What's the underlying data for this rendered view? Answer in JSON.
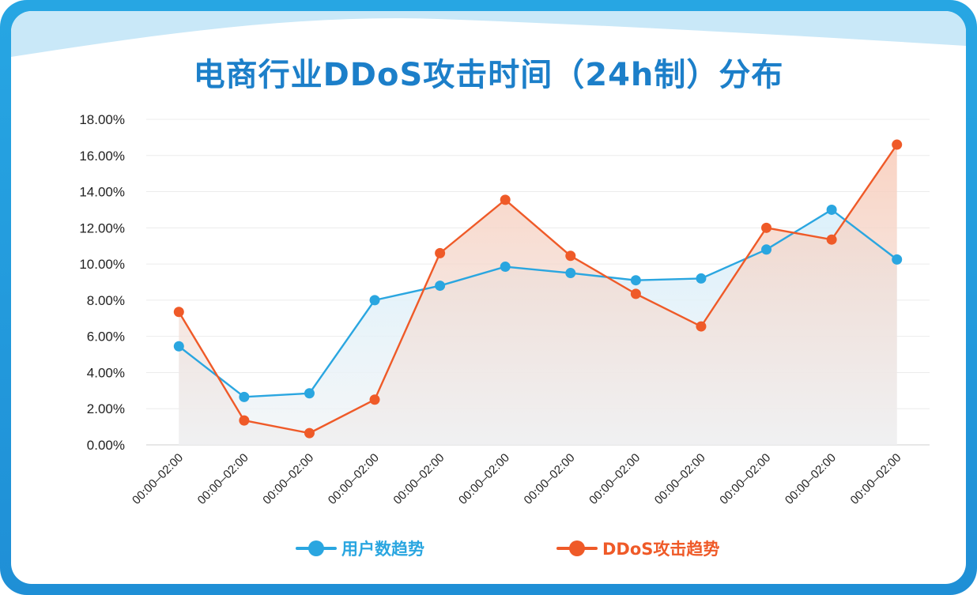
{
  "title": "电商行业DDoS攻击时间（24h制）分布",
  "colors": {
    "users": "#2aa6e0",
    "ddos": "#ef5a28",
    "frame": "#1f8fd6",
    "title": "#1c7fc9"
  },
  "legend": [
    {
      "label": "用户数趋势",
      "color": "#2aa6e0"
    },
    {
      "label": "DDoS攻击趋势",
      "color": "#ef5a28"
    }
  ],
  "chart_data": {
    "type": "line",
    "categories": [
      "00:00–02:00",
      "00:00–02:00",
      "00:00–02:00",
      "00:00–02:00",
      "00:00–02:00",
      "00:00–02:00",
      "00:00–02:00",
      "00:00–02:00",
      "00:00–02:00",
      "00:00–02:00",
      "00:00–02:00",
      "00:00–02:00"
    ],
    "series": [
      {
        "name": "用户数趋势",
        "values": [
          5.45,
          2.65,
          2.85,
          8.0,
          8.8,
          9.85,
          9.5,
          9.1,
          9.2,
          10.8,
          13.0,
          10.25
        ]
      },
      {
        "name": "DDoS攻击趋势",
        "values": [
          7.35,
          1.35,
          0.65,
          2.5,
          10.6,
          13.55,
          10.45,
          8.35,
          6.55,
          12.0,
          11.35,
          16.6
        ]
      }
    ],
    "ylim": [
      0,
      18
    ],
    "yticks": [
      "0.00%",
      "2.00%",
      "4.00%",
      "6.00%",
      "8.00%",
      "10.00%",
      "12.00%",
      "14.00%",
      "16.00%",
      "18.00%"
    ],
    "xlabel": "",
    "ylabel": "",
    "grid": true,
    "legend_position": "bottom"
  }
}
